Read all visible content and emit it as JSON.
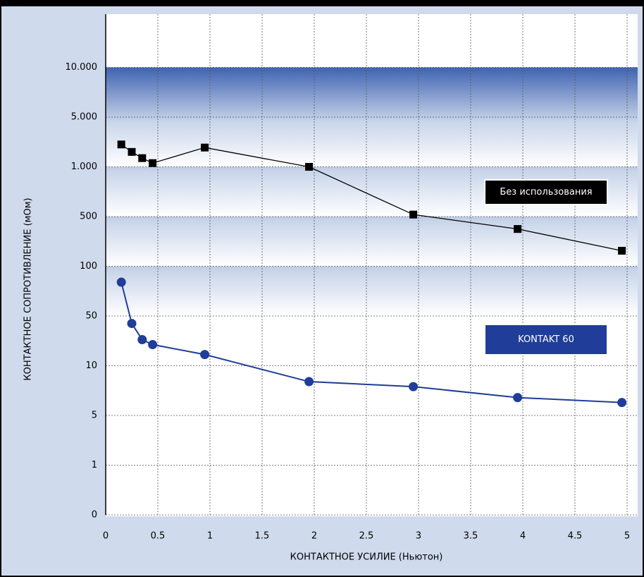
{
  "chart_data": {
    "type": "line",
    "xlabel": "КОНТАКТНОЕ УСИЛИЕ (Ньютон)",
    "ylabel": "КОНТАКТНОЕ СОПРОТИВЛЕНИЕ (мОм)",
    "xlim": [
      0,
      5
    ],
    "xticks": [
      0,
      0.5,
      1,
      1.5,
      2,
      2.5,
      3,
      3.5,
      4,
      4.5,
      5
    ],
    "ylim": [
      0,
      10000
    ],
    "yticks": [
      0,
      1,
      5,
      10,
      50,
      100,
      500,
      {
        "value": 1000,
        "label": "1.000"
      },
      {
        "value": 5000,
        "label": "5.000"
      },
      {
        "value": 10000,
        "label": "10.000"
      }
    ],
    "grid": true,
    "series": [
      {
        "name": "Без использования",
        "color": "#000000",
        "marker": "square",
        "x": [
          0.15,
          0.25,
          0.35,
          0.45,
          0.95,
          1.95,
          2.95,
          3.95,
          4.95
        ],
        "values": [
          2800,
          2200,
          1700,
          1300,
          2550,
          1000,
          520,
          400,
          225
        ]
      },
      {
        "name": "KONTAKT 60",
        "color": "#1f3d99",
        "marker": "circle",
        "x": [
          0.15,
          0.25,
          0.35,
          0.45,
          0.95,
          1.95,
          2.95,
          3.95,
          4.95
        ],
        "values": [
          84,
          44,
          31,
          27,
          19,
          8.4,
          7.9,
          6.8,
          6.3
        ]
      }
    ]
  }
}
